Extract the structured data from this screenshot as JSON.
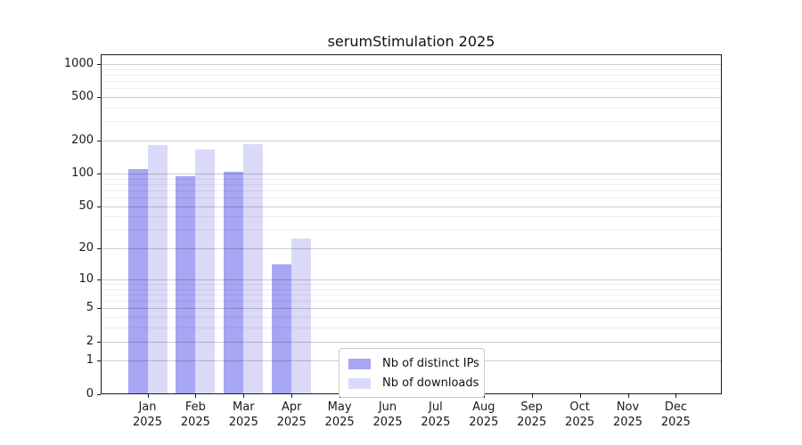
{
  "chart_data": {
    "type": "bar",
    "title": "serumStimulation 2025",
    "year": "2025",
    "months": [
      "Jan",
      "Feb",
      "Mar",
      "Apr",
      "May",
      "Jun",
      "Jul",
      "Aug",
      "Sep",
      "Oct",
      "Nov",
      "Dec"
    ],
    "categories": [
      "Jan 2025",
      "Feb 2025",
      "Mar 2025",
      "Apr 2025",
      "May 2025",
      "Jun 2025",
      "Jul 2025",
      "Aug 2025",
      "Sep 2025",
      "Oct 2025",
      "Nov 2025",
      "Dec 2025"
    ],
    "series": [
      {
        "name": "Nb of distinct IPs",
        "color": "#a6a6f3",
        "values": [
          110,
          95,
          103,
          14,
          0,
          0,
          0,
          0,
          0,
          0,
          0,
          0
        ]
      },
      {
        "name": "Nb of downloads",
        "color": "#dadaf8",
        "values": [
          183,
          167,
          187,
          25,
          0,
          0,
          0,
          0,
          0,
          0,
          0,
          0
        ]
      }
    ],
    "xlabel": "",
    "ylabel": "",
    "yscale": "log1p",
    "ylim": [
      0,
      1230
    ],
    "ytick_values": [
      0,
      1,
      2,
      5,
      10,
      20,
      50,
      100,
      200,
      500,
      1000
    ],
    "ytick_minor": [
      3,
      4,
      6,
      7,
      8,
      9,
      30,
      40,
      60,
      70,
      80,
      90,
      300,
      400,
      600,
      700,
      800,
      900
    ],
    "grid": true,
    "legend": {
      "position": "inside-bottom-center",
      "entries": [
        "Nb of distinct IPs",
        "Nb of downloads"
      ]
    }
  }
}
